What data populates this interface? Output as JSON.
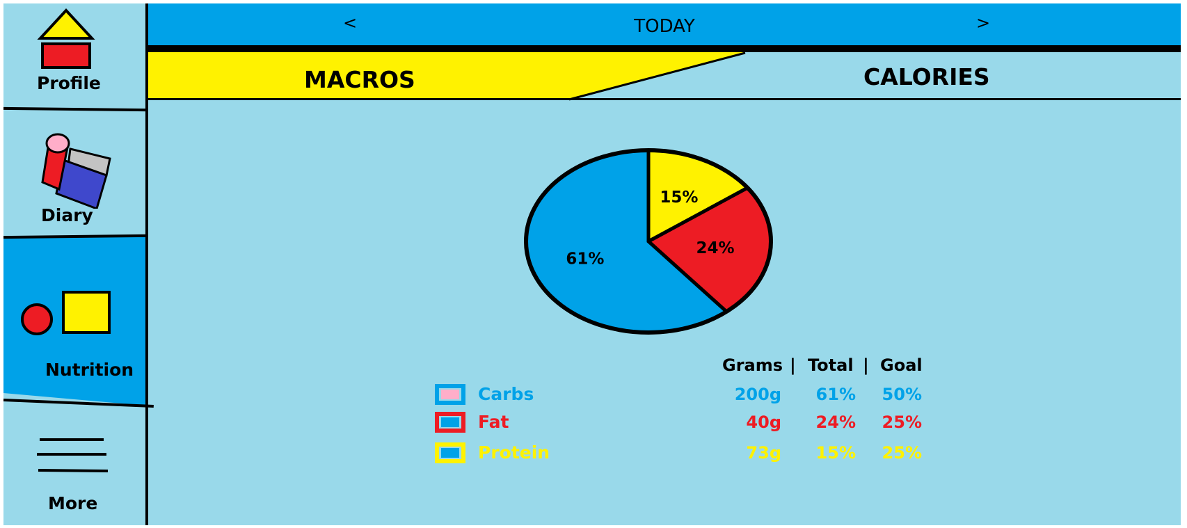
{
  "sidebar": {
    "items": [
      {
        "label": "Profile",
        "icon": "house-icon"
      },
      {
        "label": "Diary",
        "icon": "diary-icon"
      },
      {
        "label": "Nutrition",
        "icon": "shapes-icon",
        "active": true
      },
      {
        "label": "More",
        "icon": "hamburger-menu-icon"
      }
    ]
  },
  "header": {
    "prev_label": "<",
    "title": "TODAY",
    "next_label": ">"
  },
  "tabs": {
    "macros_label": "MACROS",
    "calories_label": "CALORIES",
    "active": "MACROS"
  },
  "colors": {
    "header_blue": "#00a2e8",
    "background": "#99d9ea",
    "yellow": "#fff200",
    "red": "#ed1c24",
    "pink": "#ffaec9"
  },
  "chart_data": {
    "type": "pie",
    "slices": [
      {
        "label": "15%",
        "value": 15,
        "color": "#fff200"
      },
      {
        "label": "24%",
        "value": 24,
        "color": "#ed1c24"
      },
      {
        "label": "61%",
        "value": 61,
        "color": "#00a2e8"
      }
    ]
  },
  "table": {
    "headers": {
      "grams": "Grams",
      "sep1": "|",
      "total": "Total",
      "sep2": "|",
      "goal": "Goal"
    },
    "rows": [
      {
        "name": "Carbs",
        "grams": "200g",
        "total": "61%",
        "goal": "50%",
        "color": "#00a2e8",
        "swatch_border": "#00a2e8",
        "swatch_fill": "#ffaec9"
      },
      {
        "name": "Fat",
        "grams": "40g",
        "total": "24%",
        "goal": "25%",
        "color": "#ed1c24",
        "swatch_border": "#ed1c24",
        "swatch_fill": "#00a2e8"
      },
      {
        "name": "Protein",
        "grams": "73g",
        "total": "15%",
        "goal": "25%",
        "color": "#fff200",
        "swatch_border": "#fff200",
        "swatch_fill": "#00a2e8"
      }
    ]
  }
}
